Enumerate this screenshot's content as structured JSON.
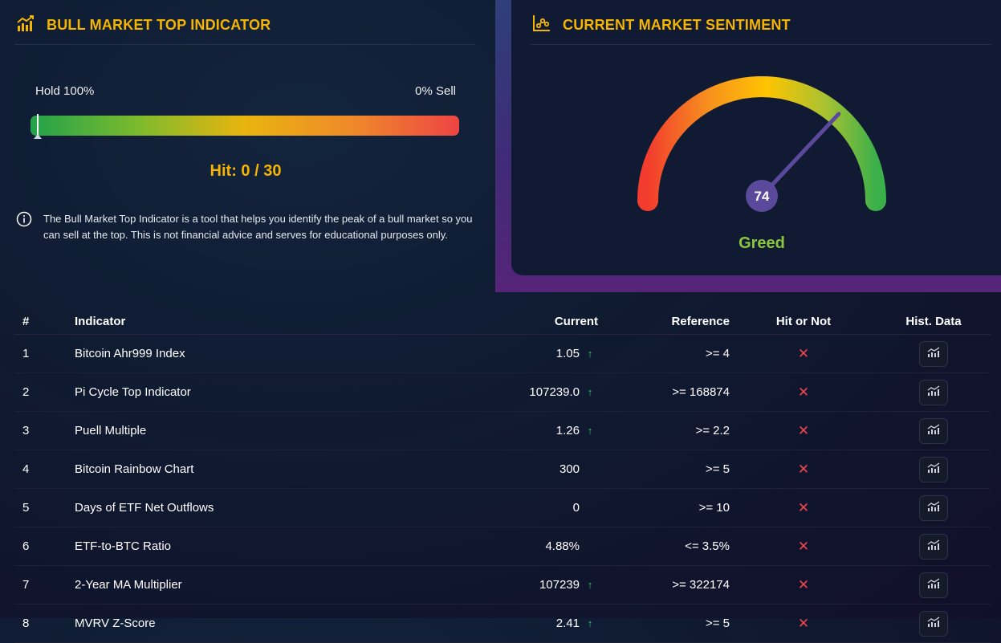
{
  "left": {
    "title": "BULL MARKET TOP INDICATOR",
    "hold_label": "Hold 100%",
    "sell_label": "0% Sell",
    "progress": 0,
    "hit_text": "Hit: 0 / 30",
    "info_text": "The Bull Market Top Indicator is a tool that helps you identify the peak of a bull market so you can sell at the top. This is not financial advice and serves for educational purposes only."
  },
  "right": {
    "title": "CURRENT MARKET SENTIMENT",
    "value": "74",
    "label": "Greed"
  },
  "table": {
    "headers": [
      "#",
      "Indicator",
      "Current",
      "Reference",
      "Hit or Not",
      "Hist. Data"
    ],
    "rows": [
      {
        "num": "1",
        "name": "Bitcoin Ahr999 Index",
        "current": "1.05",
        "trend": "up",
        "reference": ">= 4"
      },
      {
        "num": "2",
        "name": "Pi Cycle Top Indicator",
        "current": "107239.0",
        "trend": "up",
        "reference": ">= 168874"
      },
      {
        "num": "3",
        "name": "Puell Multiple",
        "current": "1.26",
        "trend": "up",
        "reference": ">= 2.2"
      },
      {
        "num": "4",
        "name": "Bitcoin Rainbow Chart",
        "current": "300",
        "trend": "",
        "reference": ">= 5"
      },
      {
        "num": "5",
        "name": "Days of ETF Net Outflows",
        "current": "0",
        "trend": "",
        "reference": ">= 10"
      },
      {
        "num": "6",
        "name": "ETF-to-BTC Ratio",
        "current": "4.88%",
        "trend": "",
        "reference": "<= 3.5%"
      },
      {
        "num": "7",
        "name": "2-Year MA Multiplier",
        "current": "107239",
        "trend": "up",
        "reference": ">= 322174"
      },
      {
        "num": "8",
        "name": "MVRV Z-Score",
        "current": "2.41",
        "trend": "up",
        "reference": ">= 5"
      }
    ]
  },
  "colors": {
    "accent": "#f5b400",
    "greed": "#8cc63f",
    "miss": "#f04a4a",
    "up": "#2ecc71"
  },
  "icons": {
    "left_header": "bar-chart-icon",
    "right_header": "sentiment-chart-icon",
    "info": "info-icon",
    "up_arrow": "arrow-up-icon",
    "miss": "x-icon",
    "hist": "chart-icon"
  }
}
